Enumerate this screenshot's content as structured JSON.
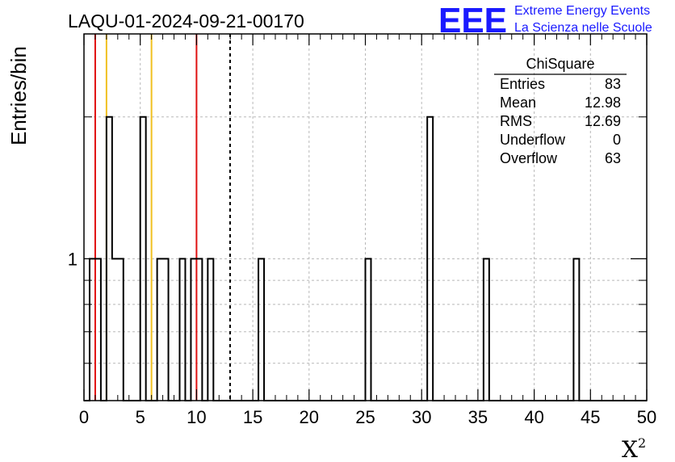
{
  "chart_data": {
    "type": "histogram",
    "title": "LAQU-01-2024-09-21-00170",
    "xlabel": "X",
    "xlabel_superscript": "2",
    "ylabel": "Entries/bin",
    "xlim": [
      0,
      50
    ],
    "ylim_log": [
      0.5,
      3
    ],
    "log_y": true,
    "grid": true,
    "bin_width": 0.5,
    "x_ticks": [
      "0",
      "5",
      "10",
      "15",
      "20",
      "25",
      "30",
      "35",
      "40",
      "45",
      "50"
    ],
    "y_tick_labels": [
      "1"
    ],
    "bins": [
      {
        "x": 0.5,
        "y": 1
      },
      {
        "x": 1.0,
        "y": 1
      },
      {
        "x": 2.0,
        "y": 2
      },
      {
        "x": 2.5,
        "y": 1
      },
      {
        "x": 3.0,
        "y": 1
      },
      {
        "x": 5.0,
        "y": 2
      },
      {
        "x": 6.5,
        "y": 1
      },
      {
        "x": 7.0,
        "y": 1
      },
      {
        "x": 8.5,
        "y": 1
      },
      {
        "x": 9.5,
        "y": 1
      },
      {
        "x": 10.0,
        "y": 1
      },
      {
        "x": 11.0,
        "y": 1
      },
      {
        "x": 15.5,
        "y": 1
      },
      {
        "x": 25.0,
        "y": 1
      },
      {
        "x": 30.5,
        "y": 2
      },
      {
        "x": 35.5,
        "y": 1
      },
      {
        "x": 43.5,
        "y": 1
      }
    ],
    "vertical_lines": [
      {
        "x": 1.0,
        "color": "#e01010",
        "style": "solid"
      },
      {
        "x": 2.0,
        "color": "#f0c020",
        "style": "solid"
      },
      {
        "x": 6.0,
        "color": "#f0c020",
        "style": "solid"
      },
      {
        "x": 10.0,
        "color": "#e01010",
        "style": "solid"
      },
      {
        "x": 12.98,
        "color": "#000000",
        "style": "dashed"
      }
    ],
    "stats_box": {
      "title": "ChiSquare",
      "rows": [
        {
          "label": "Entries",
          "value": "83"
        },
        {
          "label": "Mean",
          "value": "12.98"
        },
        {
          "label": "RMS",
          "value": "12.69"
        },
        {
          "label": "Underflow",
          "value": "0"
        },
        {
          "label": "Overflow",
          "value": "63"
        }
      ]
    }
  },
  "logo": {
    "text": "EEE",
    "line1": "Extreme Energy Events",
    "line2": "La Scienza nelle Scuole",
    "color": "#1a1aff"
  }
}
